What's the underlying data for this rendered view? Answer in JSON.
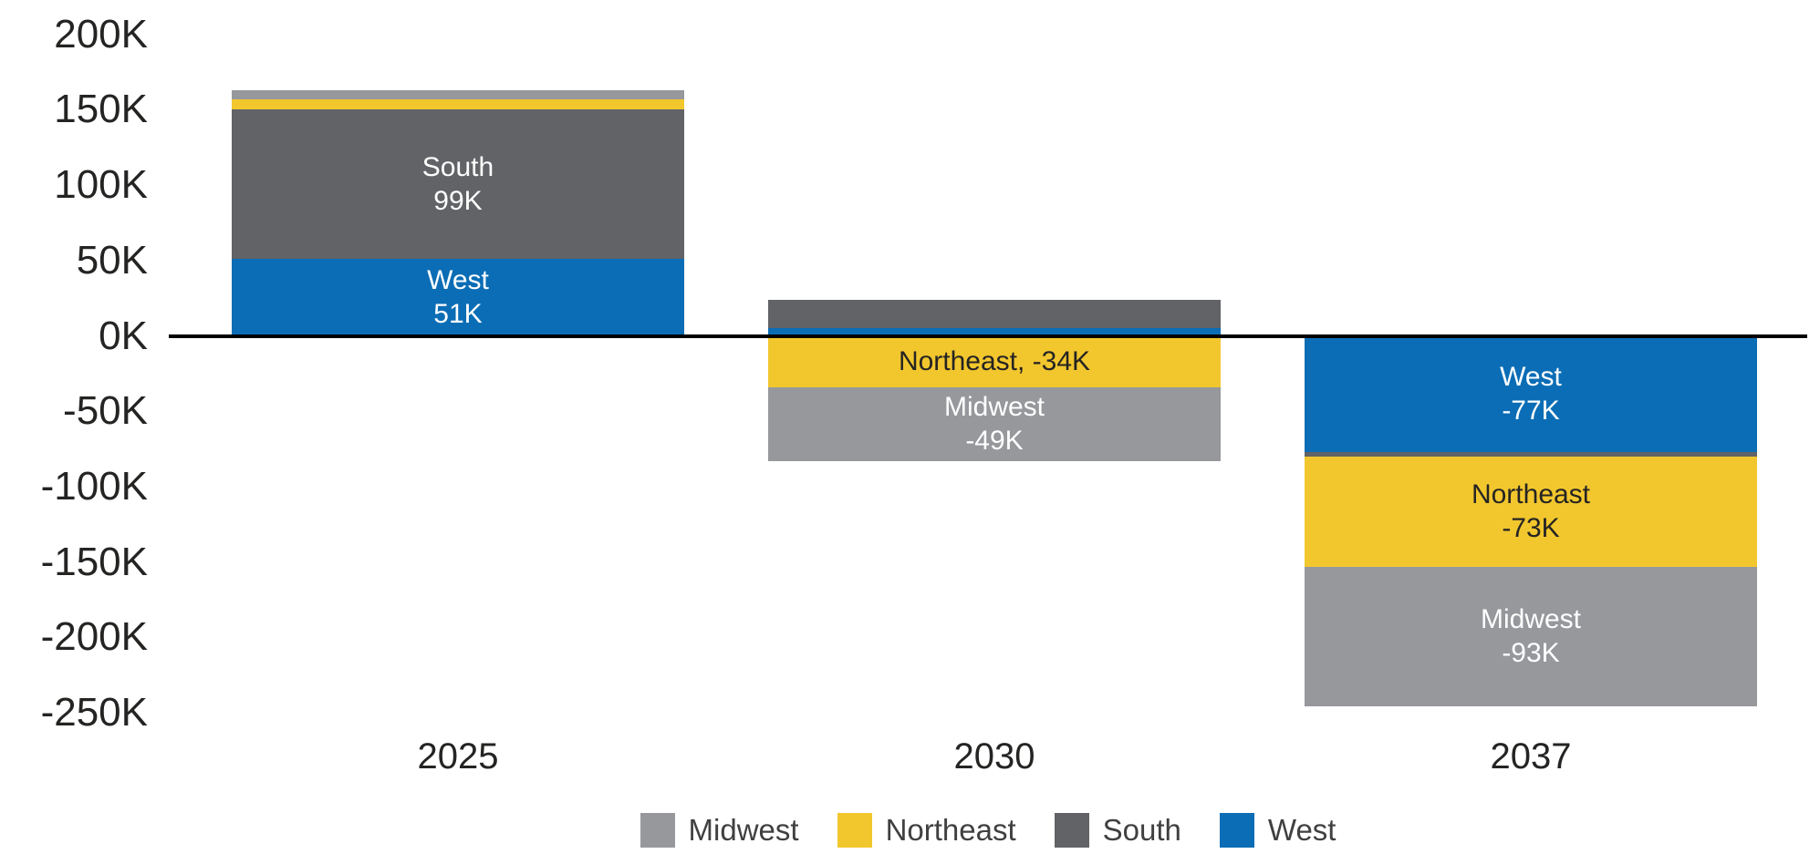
{
  "chart_data": {
    "type": "bar",
    "subtype": "stacked-column-with-negatives",
    "title": "",
    "xlabel": "",
    "ylabel": "",
    "grid": false,
    "background": "#ffffff",
    "unit": "thousands",
    "categories": [
      "2025",
      "2030",
      "2037"
    ],
    "stack_order_from_axis": [
      "West",
      "South",
      "Northeast",
      "Midwest"
    ],
    "series": [
      {
        "name": "Midwest",
        "color": "#96989C",
        "values_k": [
          6,
          -49,
          -93
        ]
      },
      {
        "name": "Northeast",
        "color": "#F2C72E",
        "values_k": [
          7,
          -34,
          -73
        ]
      },
      {
        "name": "South",
        "color": "#616366",
        "values_k": [
          99,
          19,
          -3
        ]
      },
      {
        "name": "West",
        "color": "#0B6DB5",
        "values_k": [
          51,
          5,
          -77
        ]
      }
    ],
    "segment_labels": [
      {
        "category": "2025",
        "series": "South",
        "lines": [
          "South",
          "99K"
        ],
        "text_color": "#FFFFFF"
      },
      {
        "category": "2025",
        "series": "West",
        "lines": [
          "West",
          "51K"
        ],
        "text_color": "#FFFFFF"
      },
      {
        "category": "2030",
        "series": "Northeast",
        "lines": [
          "Northeast, -34K"
        ],
        "text_color": "#252423"
      },
      {
        "category": "2030",
        "series": "Midwest",
        "lines": [
          "Midwest",
          "-49K"
        ],
        "text_color": "#FFFFFF"
      },
      {
        "category": "2037",
        "series": "West",
        "lines": [
          "West",
          "-77K"
        ],
        "text_color": "#FFFFFF"
      },
      {
        "category": "2037",
        "series": "Northeast",
        "lines": [
          "Northeast",
          "-73K"
        ],
        "text_color": "#252423"
      },
      {
        "category": "2037",
        "series": "Midwest",
        "lines": [
          "Midwest",
          "-93K"
        ],
        "text_color": "#FFFFFF"
      }
    ],
    "y_axis": {
      "ticks": [
        "200K",
        "150K",
        "100K",
        "50K",
        "0K",
        "-50K",
        "-100K",
        "-150K",
        "-200K",
        "-250K"
      ],
      "ylim_k": [
        -250,
        200
      ],
      "baseline_value_k": 0,
      "tick_color": "#252423",
      "baseline_color": "#000000"
    },
    "legend": {
      "position": "bottom",
      "items": [
        {
          "label": "Midwest",
          "color": "#96989C"
        },
        {
          "label": "Northeast",
          "color": "#F2C72E"
        },
        {
          "label": "South",
          "color": "#616366"
        },
        {
          "label": "West",
          "color": "#0B6DB5"
        }
      ]
    }
  }
}
